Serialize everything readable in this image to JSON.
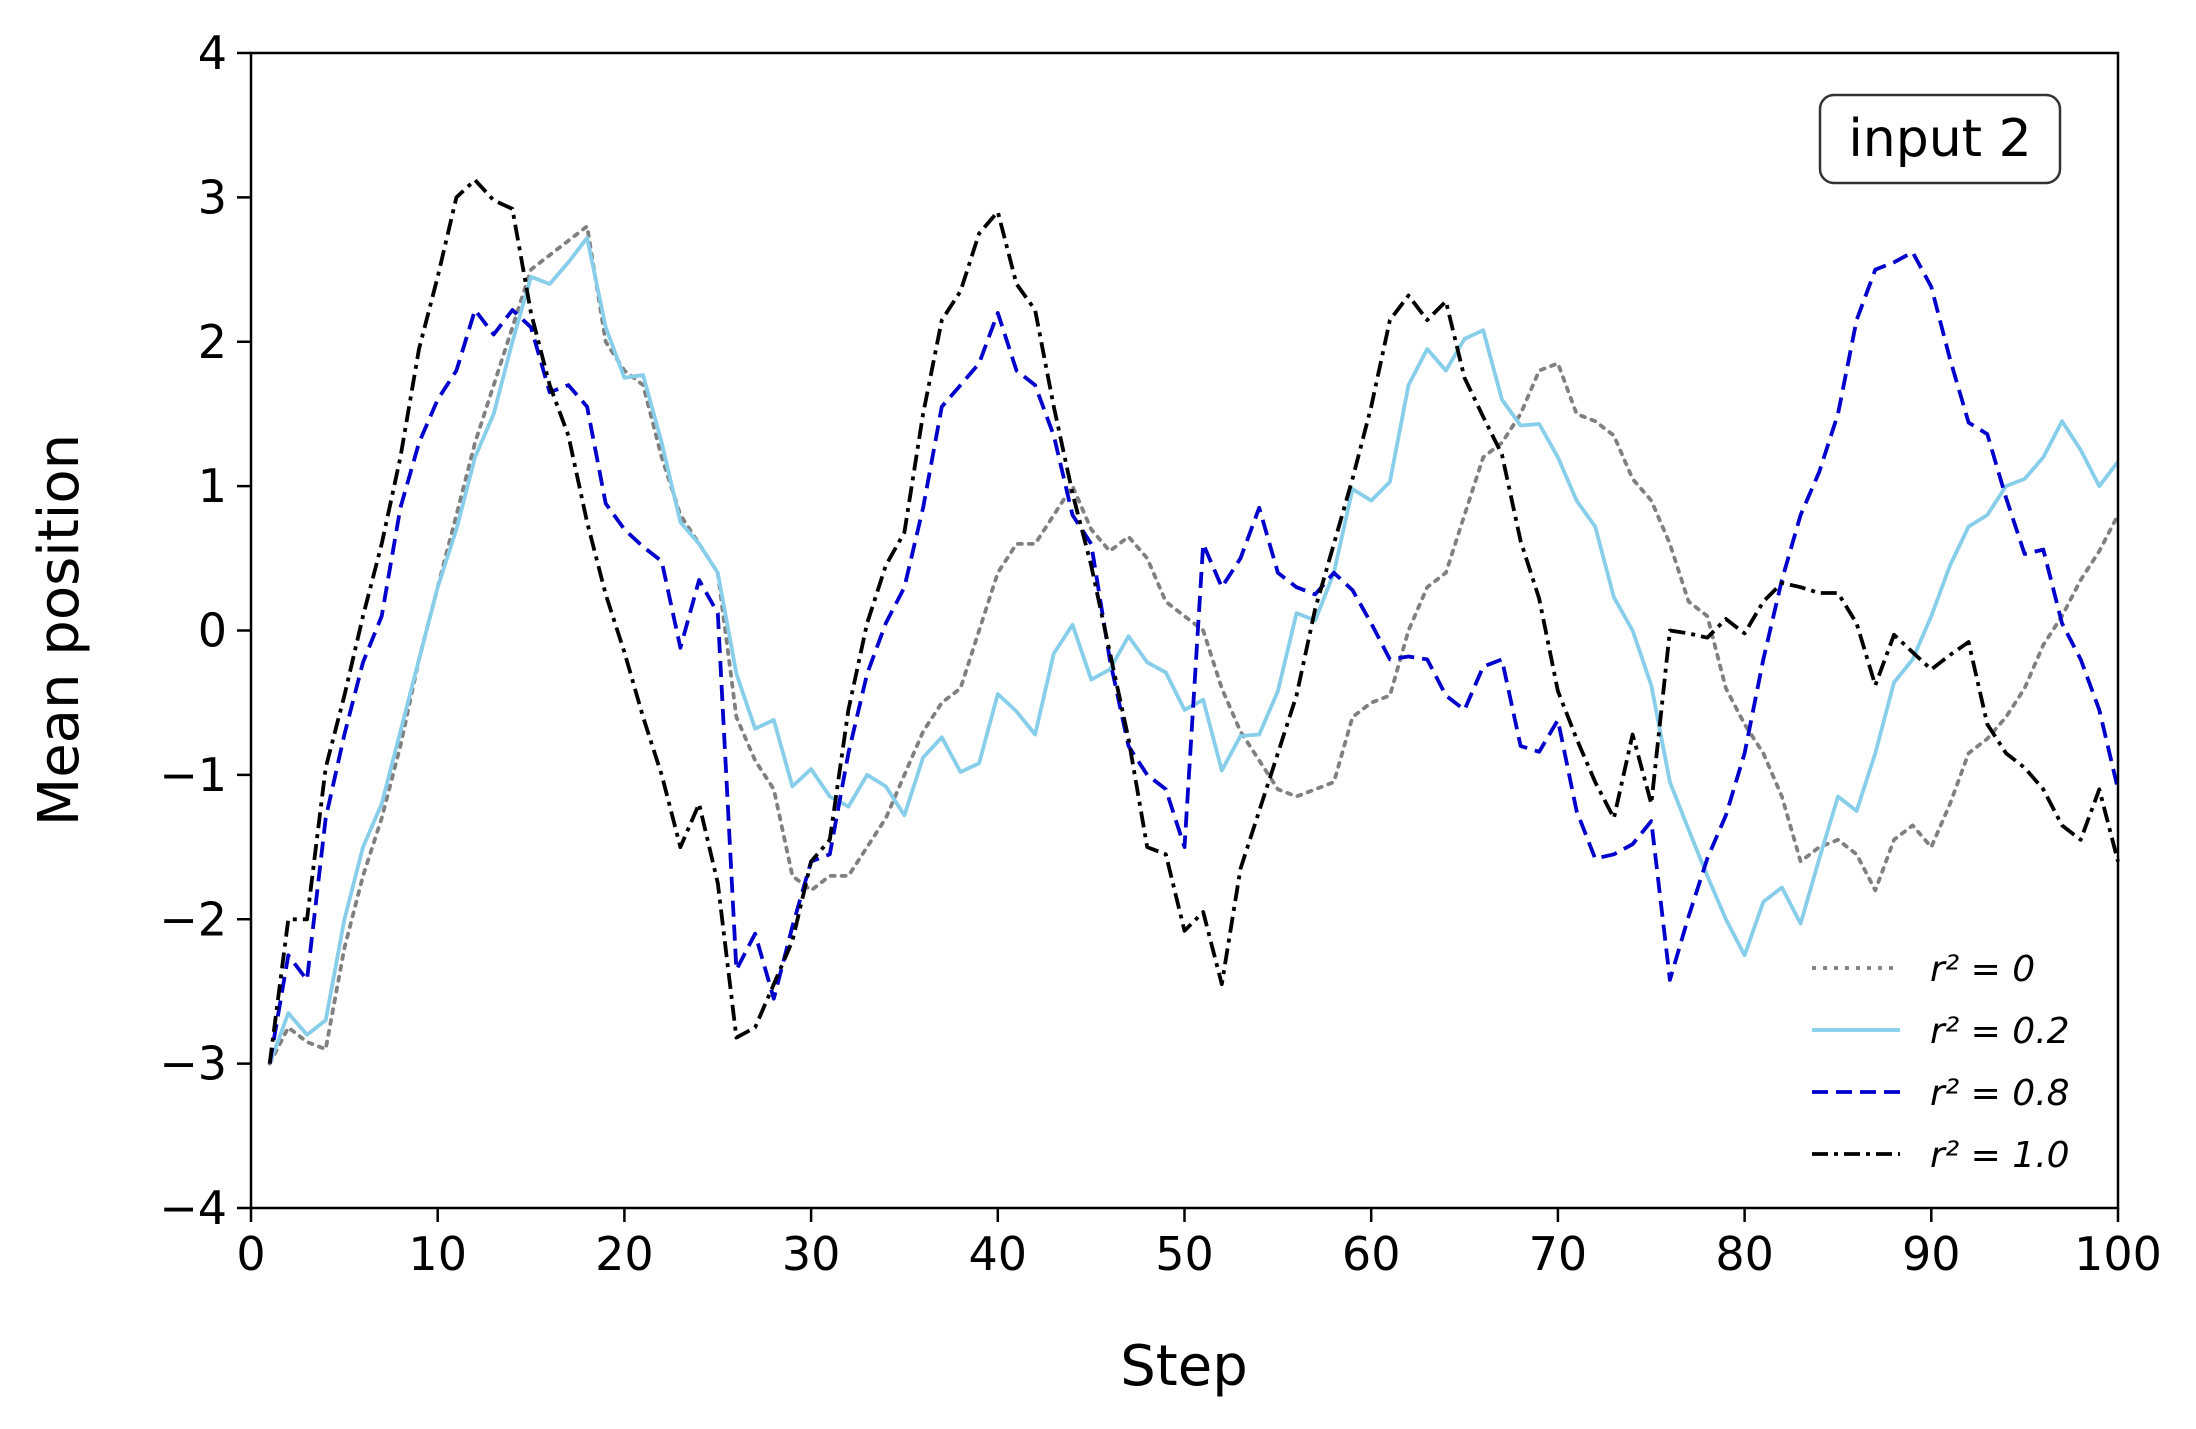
{
  "chart_data": {
    "type": "line",
    "xlabel": "Step",
    "ylabel": "Mean position",
    "xlim": [
      0,
      100
    ],
    "ylim": [
      -4,
      4
    ],
    "xticks": [
      0,
      10,
      20,
      30,
      40,
      50,
      60,
      70,
      80,
      90,
      100
    ],
    "yticks": [
      -4,
      -3,
      -2,
      -1,
      0,
      1,
      2,
      3,
      4
    ],
    "grid": false,
    "legend_position": "bottom-right",
    "annotation": "input 2",
    "series": [
      {
        "name": "r² = 0",
        "color": "#808080",
        "dash": "dotted",
        "x": [
          1,
          2,
          3,
          4,
          5,
          6,
          7,
          8,
          9,
          10,
          11,
          12,
          13,
          14,
          15,
          16,
          17,
          18,
          19,
          20,
          21,
          22,
          23,
          24,
          25,
          26,
          27,
          28,
          29,
          30,
          31,
          32,
          33,
          34,
          35,
          36,
          37,
          38,
          39,
          40,
          41,
          42,
          43,
          44,
          45,
          46,
          47,
          48,
          49,
          50,
          51,
          52,
          53,
          54,
          55,
          56,
          57,
          58,
          59,
          60,
          61,
          62,
          63,
          64,
          65,
          66,
          67,
          68,
          69,
          70,
          71,
          72,
          73,
          74,
          75,
          76,
          77,
          78,
          79,
          80,
          81,
          82,
          83,
          84,
          85,
          86,
          87,
          88,
          89,
          90,
          91,
          92,
          93,
          94,
          95,
          96,
          97,
          98,
          99,
          100
        ],
        "y": [
          -3.0,
          -2.75,
          -2.85,
          -2.9,
          -2.2,
          -1.7,
          -1.3,
          -0.8,
          -0.2,
          0.3,
          0.8,
          1.3,
          1.7,
          2.1,
          2.5,
          2.6,
          2.7,
          2.8,
          2.0,
          1.8,
          1.7,
          1.2,
          0.8,
          0.6,
          0.4,
          -0.6,
          -0.9,
          -1.1,
          -1.7,
          -1.8,
          -1.7,
          -1.7,
          -1.5,
          -1.3,
          -1.0,
          -0.7,
          -0.5,
          -0.4,
          0.0,
          0.4,
          0.6,
          0.6,
          0.8,
          1.0,
          0.7,
          0.55,
          0.65,
          0.5,
          0.2,
          0.1,
          0.0,
          -0.4,
          -0.7,
          -0.9,
          -1.1,
          -1.15,
          -1.1,
          -1.05,
          -0.6,
          -0.5,
          -0.45,
          0.0,
          0.3,
          0.4,
          0.8,
          1.2,
          1.3,
          1.5,
          1.8,
          1.85,
          1.5,
          1.45,
          1.35,
          1.05,
          0.9,
          0.6,
          0.2,
          0.1,
          -0.4,
          -0.65,
          -0.85,
          -1.15,
          -1.6,
          -1.5,
          -1.45,
          -1.55,
          -1.8,
          -1.45,
          -1.35,
          -1.5,
          -1.2,
          -0.85,
          -0.75,
          -0.6,
          -0.4,
          -0.1,
          0.1,
          0.35,
          0.55,
          0.8
        ]
      },
      {
        "name": "r² = 0.2",
        "color": "#87ceeb",
        "dash": "solid",
        "x": [
          1,
          2,
          3,
          4,
          5,
          6,
          7,
          8,
          9,
          10,
          11,
          12,
          13,
          14,
          15,
          16,
          17,
          18,
          19,
          20,
          21,
          22,
          23,
          24,
          25,
          26,
          27,
          28,
          29,
          30,
          31,
          32,
          33,
          34,
          35,
          36,
          37,
          38,
          39,
          40,
          41,
          42,
          43,
          44,
          45,
          46,
          47,
          48,
          49,
          50,
          51,
          52,
          53,
          54,
          55,
          56,
          57,
          58,
          59,
          60,
          61,
          62,
          63,
          64,
          65,
          66,
          67,
          68,
          69,
          70,
          71,
          72,
          73,
          74,
          75,
          76,
          77,
          78,
          79,
          80,
          81,
          82,
          83,
          84,
          85,
          86,
          87,
          88,
          89,
          90,
          91,
          92,
          93,
          94,
          95,
          96,
          97,
          98,
          99,
          100
        ],
        "y": [
          -3.0,
          -2.65,
          -2.8,
          -2.7,
          -2.0,
          -1.5,
          -1.2,
          -0.7,
          -0.2,
          0.3,
          0.7,
          1.2,
          1.5,
          2.0,
          2.45,
          2.4,
          2.55,
          2.72,
          2.1,
          1.75,
          1.77,
          1.3,
          0.75,
          0.6,
          0.4,
          -0.3,
          -0.68,
          -0.62,
          -1.08,
          -0.96,
          -1.15,
          -1.22,
          -1.0,
          -1.08,
          -1.28,
          -0.88,
          -0.74,
          -0.98,
          -0.92,
          -0.44,
          -0.56,
          -0.72,
          -0.16,
          0.04,
          -0.34,
          -0.27,
          -0.04,
          -0.22,
          -0.29,
          -0.55,
          -0.48,
          -0.97,
          -0.73,
          -0.72,
          -0.42,
          0.12,
          0.07,
          0.4,
          0.98,
          0.9,
          1.03,
          1.7,
          1.95,
          1.8,
          2.02,
          2.08,
          1.6,
          1.42,
          1.43,
          1.2,
          0.9,
          0.72,
          0.23,
          0.0,
          -0.38,
          -1.05,
          -1.38,
          -1.7,
          -2.0,
          -2.25,
          -1.88,
          -1.78,
          -2.03,
          -1.58,
          -1.15,
          -1.25,
          -0.85,
          -0.36,
          -0.2,
          0.1,
          0.45,
          0.72,
          0.8,
          1.0,
          1.05,
          1.2,
          1.45,
          1.25,
          1.0,
          1.17
        ]
      },
      {
        "name": "r² = 0.8",
        "color": "#0000cd",
        "dash": "dashed",
        "x": [
          1,
          2,
          3,
          4,
          5,
          6,
          7,
          8,
          9,
          10,
          11,
          12,
          13,
          14,
          15,
          16,
          17,
          18,
          19,
          20,
          21,
          22,
          23,
          24,
          25,
          26,
          27,
          28,
          29,
          30,
          31,
          32,
          33,
          34,
          35,
          36,
          37,
          38,
          39,
          40,
          41,
          42,
          43,
          44,
          45,
          46,
          47,
          48,
          49,
          50,
          51,
          52,
          53,
          54,
          55,
          56,
          57,
          58,
          59,
          60,
          61,
          62,
          63,
          64,
          65,
          66,
          67,
          68,
          69,
          70,
          71,
          72,
          73,
          74,
          75,
          76,
          77,
          78,
          79,
          80,
          81,
          82,
          83,
          84,
          85,
          86,
          87,
          88,
          89,
          90,
          91,
          92,
          93,
          94,
          95,
          96,
          97,
          98,
          99,
          100
        ],
        "y": [
          -3.0,
          -2.25,
          -2.42,
          -1.3,
          -0.72,
          -0.22,
          0.1,
          0.85,
          1.3,
          1.6,
          1.8,
          2.22,
          2.05,
          2.22,
          2.1,
          1.65,
          1.7,
          1.55,
          0.88,
          0.7,
          0.58,
          0.48,
          -0.12,
          0.35,
          0.12,
          -2.35,
          -2.1,
          -2.55,
          -2.05,
          -1.6,
          -1.55,
          -0.85,
          -0.3,
          0.05,
          0.3,
          0.85,
          1.55,
          1.7,
          1.85,
          2.2,
          1.8,
          1.7,
          1.35,
          0.8,
          0.6,
          -0.2,
          -0.8,
          -1.0,
          -1.1,
          -1.5,
          0.6,
          0.3,
          0.5,
          0.85,
          0.4,
          0.3,
          0.25,
          0.4,
          0.28,
          0.05,
          -0.2,
          -0.18,
          -0.2,
          -0.45,
          -0.55,
          -0.25,
          -0.2,
          -0.8,
          -0.84,
          -0.62,
          -1.25,
          -1.58,
          -1.55,
          -1.48,
          -1.32,
          -2.42,
          -1.98,
          -1.58,
          -1.28,
          -0.85,
          -0.2,
          0.35,
          0.8,
          1.1,
          1.5,
          2.15,
          2.5,
          2.55,
          2.62,
          2.38,
          1.88,
          1.44,
          1.36,
          0.92,
          0.53,
          0.56,
          0.05,
          -0.2,
          -0.55,
          -1.1
        ]
      },
      {
        "name": "r² = 1.0",
        "color": "#000000",
        "dash": "dashdot",
        "x": [
          1,
          2,
          3,
          4,
          5,
          6,
          7,
          8,
          9,
          10,
          11,
          12,
          13,
          14,
          15,
          16,
          17,
          18,
          19,
          20,
          21,
          22,
          23,
          24,
          25,
          26,
          27,
          28,
          29,
          30,
          31,
          32,
          33,
          34,
          35,
          36,
          37,
          38,
          39,
          40,
          41,
          42,
          43,
          44,
          45,
          46,
          47,
          48,
          49,
          50,
          51,
          52,
          53,
          54,
          55,
          56,
          57,
          58,
          59,
          60,
          61,
          62,
          63,
          64,
          65,
          66,
          67,
          68,
          69,
          70,
          71,
          72,
          73,
          74,
          75,
          76,
          77,
          78,
          79,
          80,
          81,
          82,
          83,
          84,
          85,
          86,
          87,
          88,
          89,
          90,
          91,
          92,
          93,
          94,
          95,
          96,
          97,
          98,
          99,
          100
        ],
        "y": [
          -3.0,
          -2.0,
          -2.0,
          -0.95,
          -0.45,
          0.1,
          0.6,
          1.2,
          1.95,
          2.45,
          3.0,
          3.12,
          2.98,
          2.92,
          2.2,
          1.7,
          1.35,
          0.75,
          0.25,
          -0.15,
          -0.6,
          -1.0,
          -1.5,
          -1.2,
          -1.75,
          -2.82,
          -2.75,
          -2.45,
          -2.15,
          -1.6,
          -1.45,
          -0.55,
          0.05,
          0.45,
          0.68,
          1.5,
          2.15,
          2.35,
          2.75,
          2.9,
          2.4,
          2.22,
          1.55,
          0.95,
          0.45,
          -0.15,
          -0.75,
          -1.5,
          -1.55,
          -2.08,
          -1.95,
          -2.45,
          -1.65,
          -1.25,
          -0.85,
          -0.45,
          0.15,
          0.6,
          1.05,
          1.55,
          2.15,
          2.32,
          2.15,
          2.28,
          1.75,
          1.48,
          1.22,
          0.62,
          0.22,
          -0.42,
          -0.75,
          -1.05,
          -1.3,
          -0.72,
          -1.2,
          0.0,
          -0.02,
          -0.05,
          0.08,
          -0.02,
          0.2,
          0.33,
          0.3,
          0.26,
          0.26,
          0.05,
          -0.38,
          -0.03,
          -0.15,
          -0.27,
          -0.17,
          -0.08,
          -0.65,
          -0.85,
          -0.95,
          -1.1,
          -1.35,
          -1.45,
          -1.1,
          -1.6
        ]
      }
    ]
  }
}
